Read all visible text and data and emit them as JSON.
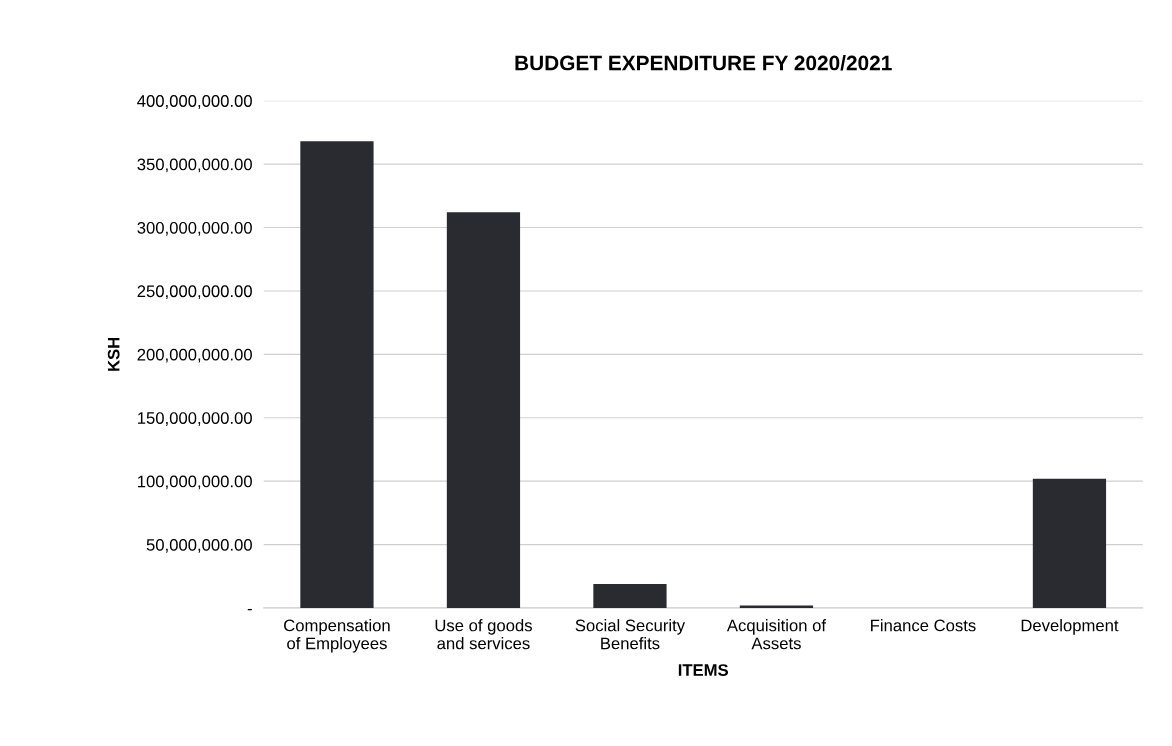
{
  "chart_data": {
    "type": "bar",
    "title": "BUDGET EXPENDITURE FY 2020/2021",
    "xlabel": "ITEMS",
    "ylabel": "KSH",
    "categories": [
      "Compensation\nof Employees",
      "Use of goods\nand services",
      "Social Security\nBenefits",
      "Acquisition of\nAssets",
      "Finance Costs",
      "Development"
    ],
    "values": [
      368000000,
      312000000,
      19000000,
      2000000,
      0,
      102000000
    ],
    "color": "#2a2b30",
    "ylim": [
      0,
      400000000
    ],
    "yticks": [
      {
        "value": 0,
        "label": "-"
      },
      {
        "value": 50000000,
        "label": "50,000,000.00"
      },
      {
        "value": 100000000,
        "label": "100,000,000.00"
      },
      {
        "value": 150000000,
        "label": "150,000,000.00"
      },
      {
        "value": 200000000,
        "label": "200,000,000.00"
      },
      {
        "value": 250000000,
        "label": "250,000,000.00"
      },
      {
        "value": 300000000,
        "label": "300,000,000.00"
      },
      {
        "value": 350000000,
        "label": "350,000,000.00"
      },
      {
        "value": 400000000,
        "label": "400,000,000.00"
      }
    ],
    "grid": "y",
    "legend": false
  }
}
